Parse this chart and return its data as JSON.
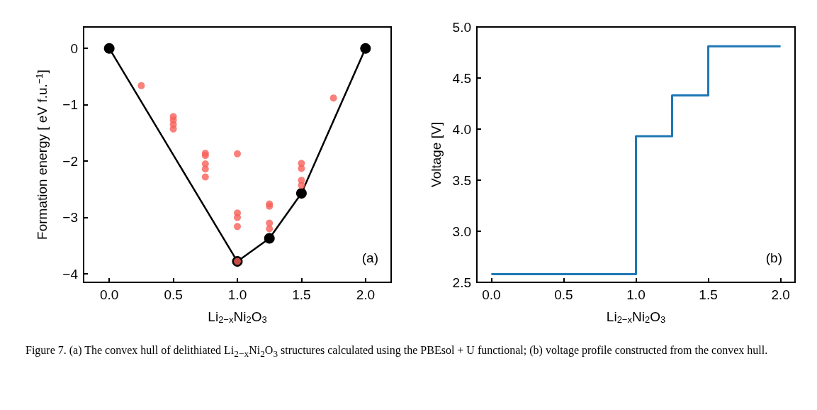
{
  "chart_data": [
    {
      "type": "scatter",
      "xlabel": "Li$_{2−x}$Ni$_{2}$O$_{3}$",
      "ylabel": "Formation energy [ eV f.u.$^{−1}$]",
      "xlim": [
        -0.2,
        2.2
      ],
      "xticks": [
        {
          "value": 0,
          "label": "0.0"
        },
        {
          "value": 0.5,
          "label": "0.5"
        },
        {
          "value": 1,
          "label": "1.0"
        },
        {
          "value": 1.5,
          "label": "1.5"
        },
        {
          "value": 2,
          "label": "2.0"
        }
      ],
      "ylim": [
        -4.15,
        0.38
      ],
      "yticks": [
        {
          "value": -4,
          "label": "−4"
        },
        {
          "value": -3,
          "label": "−3"
        },
        {
          "value": -2,
          "label": "−2"
        },
        {
          "value": -1,
          "label": "−1"
        },
        0
      ],
      "grid": false,
      "marker": "circle",
      "series": [
        {
          "color": "#f8605a",
          "x": [
            0.25,
            0.5,
            0.5,
            0.5,
            0.5,
            0.75,
            0.75,
            0.75,
            0.75,
            0.75,
            1,
            1,
            1,
            1,
            1,
            1.25,
            1.25,
            1.25,
            1.25,
            1.5,
            1.5,
            1.5,
            1.5,
            1.75
          ],
          "values": [
            -0.66,
            -1.21,
            -1.27,
            -1.35,
            -1.43,
            -1.86,
            -1.9,
            -2.05,
            -2.14,
            -2.28,
            -1.87,
            -2.92,
            -3.0,
            -3.16,
            -3.78,
            -2.76,
            -2.8,
            -3.1,
            -3.2,
            -2.04,
            -2.13,
            -2.34,
            -2.43,
            -0.88
          ]
        },
        {
          "type": "line",
          "color": "#000000",
          "x": [
            0,
            1,
            1.25,
            1.5,
            2
          ],
          "values": [
            0,
            -3.78,
            -3.37,
            -2.57,
            0
          ]
        }
      ],
      "annotations": [
        "(a)",
        "Figure 7. (a) The convex hull of delithiated Li$_{2−x}$Ni$_{2}$O$_{3}$ structures calculated using the PBEsol + U functional; (b) voltage profile constructed from the convex hull."
      ]
    },
    {
      "type": "step",
      "xlabel": "Li$_{2−x}$Ni$_{2}$O$_{3}$",
      "ylabel": "Voltage [V]",
      "xlim": [
        -0.1,
        2.1
      ],
      "xticks": [
        {
          "value": 0,
          "label": "0.0"
        },
        {
          "value": 0.5,
          "label": "0.5"
        },
        {
          "value": 1,
          "label": "1.0"
        },
        {
          "value": 1.5,
          "label": "1.5"
        },
        {
          "value": 2,
          "label": "2.0"
        }
      ],
      "ylim": [
        2.5,
        5.0
      ],
      "yticks": [
        2.5,
        {
          "value": 3,
          "label": "3.0"
        },
        3.5,
        {
          "value": 4,
          "label": "4.0"
        },
        4.5,
        {
          "value": 5,
          "label": "5.0"
        }
      ],
      "grid": false,
      "marker": "none",
      "series": [
        {
          "color": "#1f77b4",
          "x": [
            0,
            1,
            1.25,
            1.5,
            2
          ],
          "values": [
            2.58,
            3.93,
            4.33,
            4.81,
            4.81
          ]
        }
      ],
      "annotations": [
        "(b)"
      ]
    }
  ]
}
